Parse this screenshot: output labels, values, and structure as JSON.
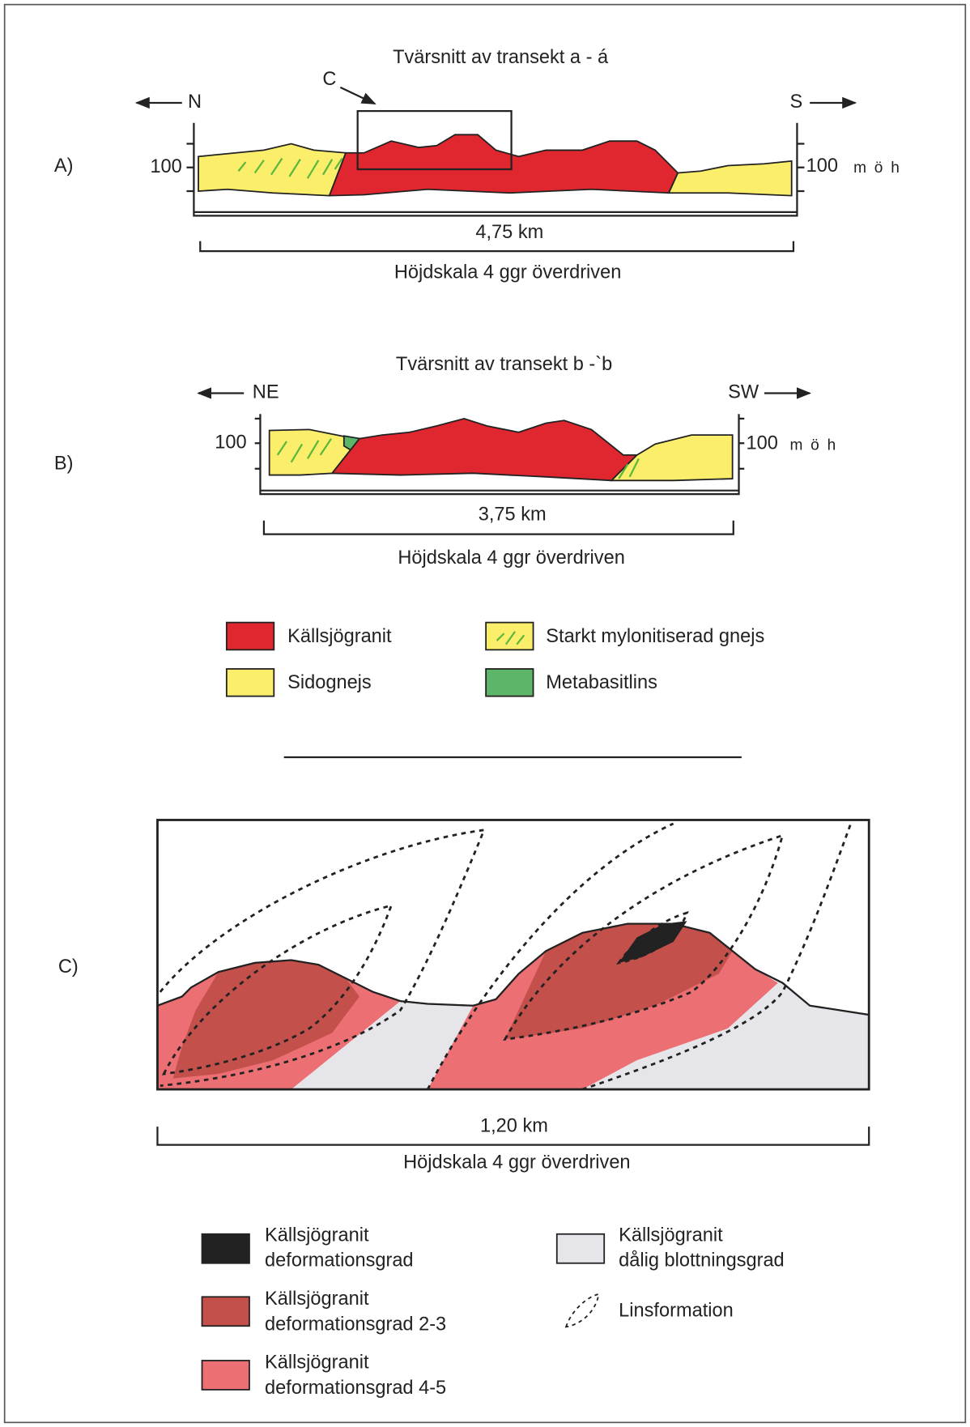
{
  "panel_a": {
    "label": "A)",
    "title": "Tvärsnitt av transekt a - á",
    "left_direction": "N",
    "right_direction": "S",
    "callout": "C",
    "left_elevation": "100",
    "right_elevation": "100",
    "elevation_unit": "m ö h",
    "distance": "4,75 km",
    "scale_note": "Höjdskala 4 ggr överdriven"
  },
  "panel_b": {
    "label": "B)",
    "title": "Tvärsnitt av transekt b -`b",
    "left_direction": "NE",
    "right_direction": "SW",
    "left_elevation": "100",
    "right_elevation": "100",
    "elevation_unit": "m ö h",
    "distance": "3,75 km",
    "scale_note": "Höjdskala 4 ggr överdriven"
  },
  "legend_ab": [
    "Källsjögranit",
    "Sidognejs",
    "Starkt mylonitiserad gnejs",
    "Metabasitlins"
  ],
  "panel_c": {
    "label": "C)",
    "distance": "1,20 km",
    "scale_note": "Höjdskala 4 ggr överdriven"
  },
  "legend_c": [
    [
      "Källsjögranit",
      "deformationsgrad"
    ],
    [
      "Källsjögranit",
      "deformationsgrad 2-3"
    ],
    [
      "Källsjögranit",
      "deformationsgrad 4-5"
    ],
    [
      "Källsjögranit",
      "dålig blottningsgrad"
    ],
    [
      "Linsformation"
    ]
  ]
}
